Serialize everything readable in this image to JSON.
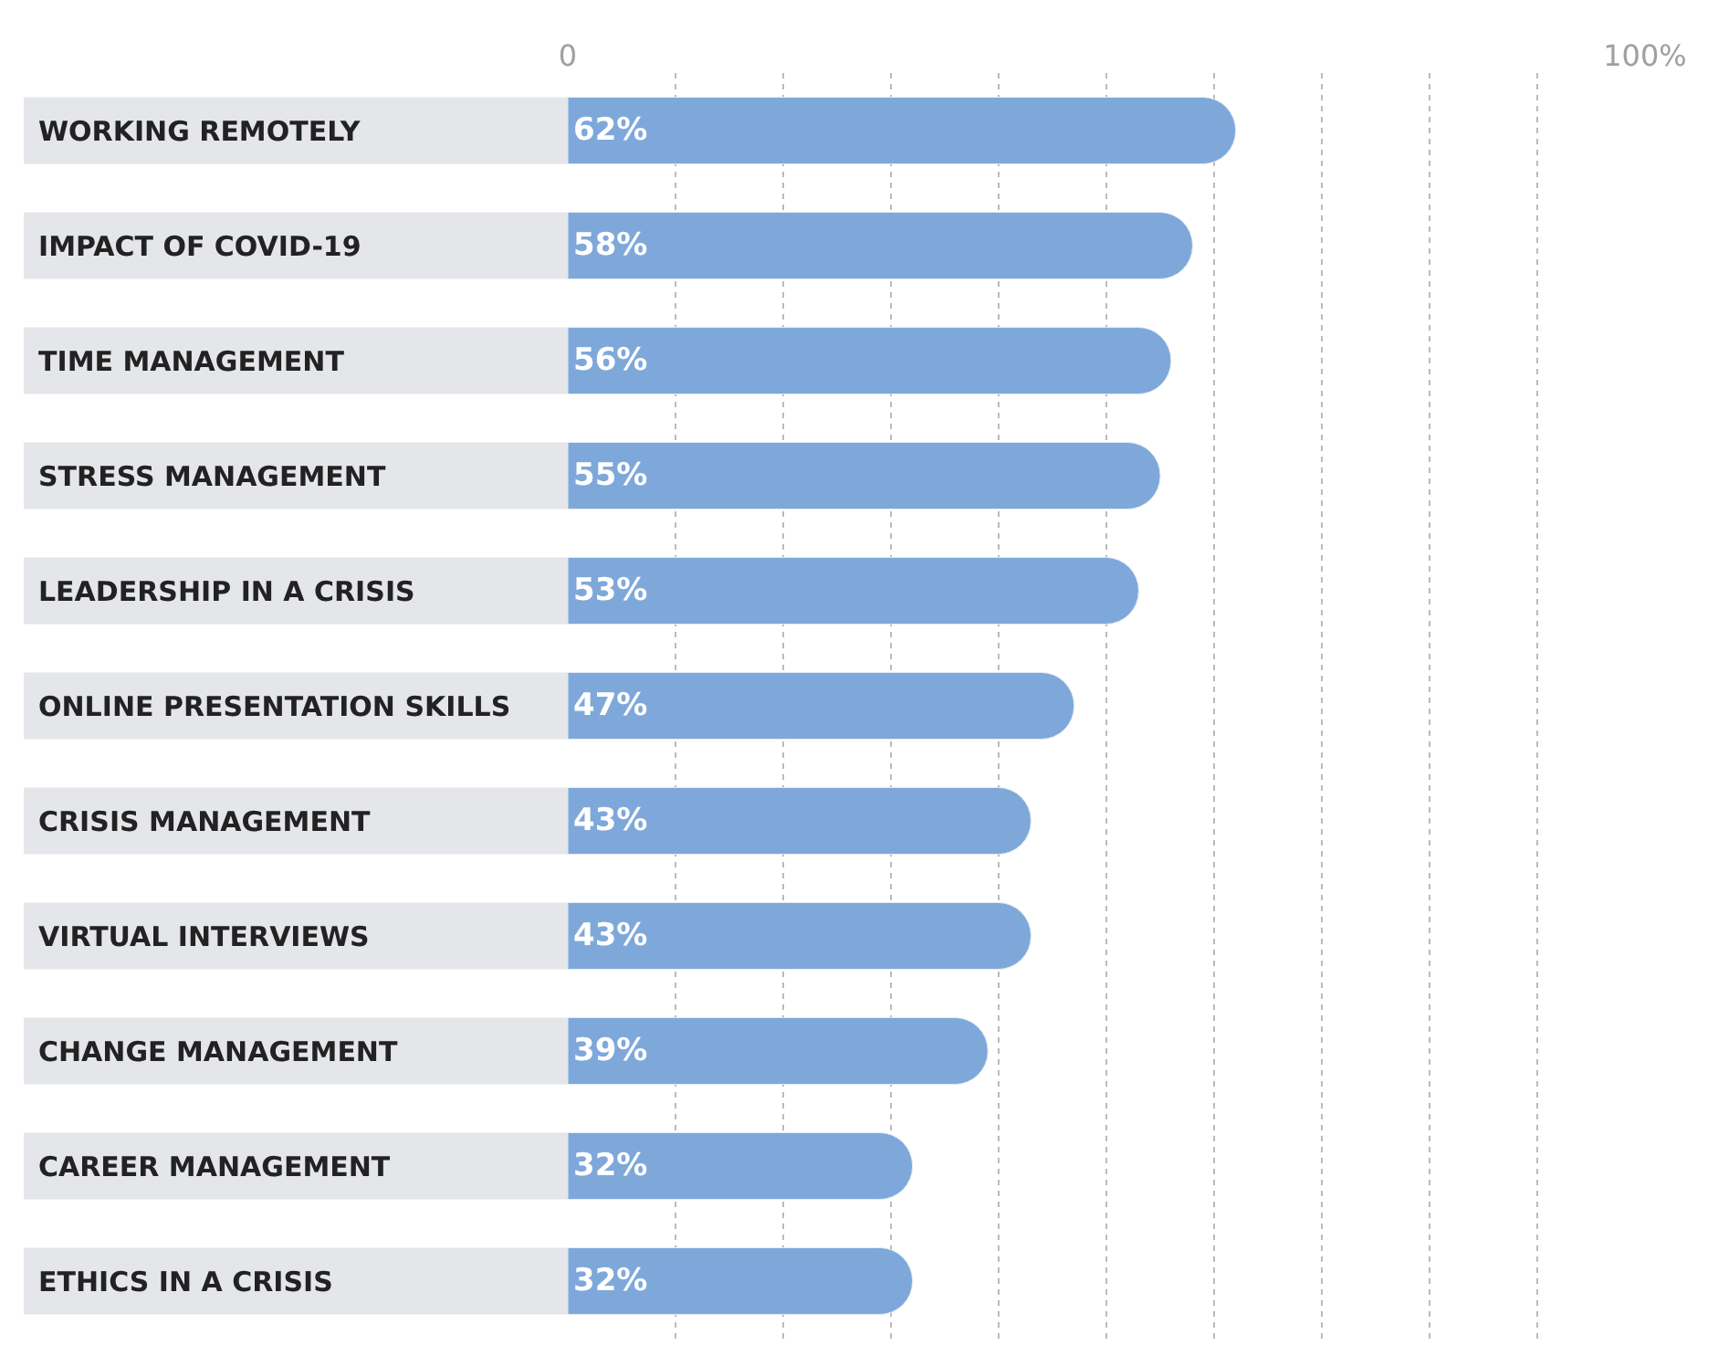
{
  "chart_data": {
    "type": "bar",
    "orientation": "horizontal",
    "categories": [
      "WORKING REMOTELY",
      "IMPACT OF COVID-19",
      "TIME MANAGEMENT",
      "STRESS MANAGEMENT",
      "LEADERSHIP IN A CRISIS",
      "ONLINE PRESENTATION SKILLS",
      "CRISIS MANAGEMENT",
      "VIRTUAL INTERVIEWS",
      "CHANGE MANAGEMENT",
      "CAREER MANAGEMENT",
      "ETHICS IN A CRISIS"
    ],
    "values": [
      62,
      58,
      56,
      55,
      53,
      47,
      43,
      43,
      39,
      32,
      32
    ],
    "value_labels": [
      "62%",
      "58%",
      "56%",
      "55%",
      "53%",
      "47%",
      "43%",
      "43%",
      "39%",
      "32%",
      "32%"
    ],
    "color": "#7fa8da",
    "xlim": [
      0,
      100
    ],
    "xticks": [
      0,
      {
        "value": 10,
        "label": null
      },
      {
        "value": 20,
        "label": null
      },
      {
        "value": 30,
        "label": null
      },
      {
        "value": 40,
        "label": null
      },
      {
        "value": 50,
        "label": null
      },
      {
        "value": 60,
        "label": null
      },
      {
        "value": 70,
        "label": null
      },
      {
        "value": 80,
        "label": null
      },
      {
        "value": 90,
        "label": null
      },
      {
        "value": 100,
        "label": "100%"
      }
    ],
    "grid": "x",
    "legend": false
  }
}
